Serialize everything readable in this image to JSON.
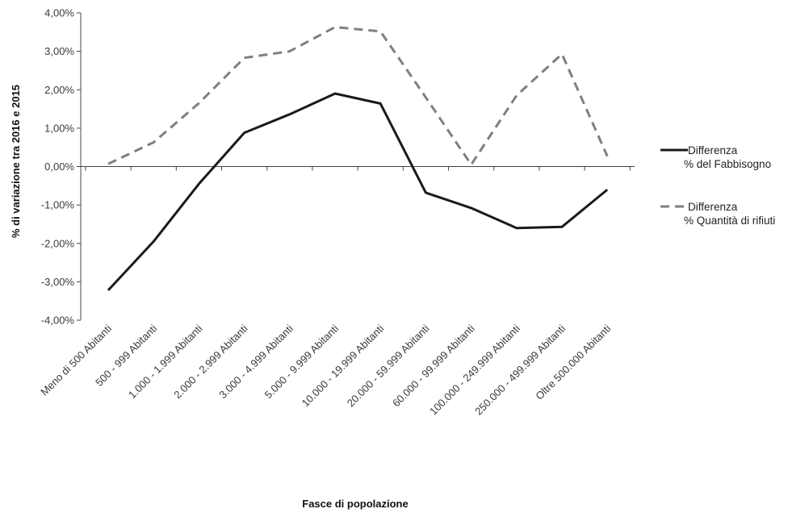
{
  "chart_data": {
    "type": "line",
    "title": "",
    "xlabel": "Fasce di popolazione",
    "ylabel": "% di variazione tra 2016 e 2015",
    "ylim": [
      -4,
      4
    ],
    "yticks": [
      4,
      3,
      2,
      1,
      0,
      -1,
      -2,
      -3,
      -4
    ],
    "ytick_labels": [
      "4,00%",
      "3,00%",
      "2,00%",
      "1,00%",
      "0,00%",
      "-1,00%",
      "-2,00%",
      "-3,00%",
      "-4,00%"
    ],
    "grid": false,
    "legend_position": "right",
    "categories": [
      "Meno di 500 Abitanti",
      "500 - 999 Abitanti",
      "1.000 - 1.999 Abitanti",
      "2.000 - 2.999 Abitanti",
      "3.000 - 4.999 Abitanti",
      "5.000 - 9.999 Abitanti",
      "10.000 - 19.999 Abitanti",
      "20.000 - 59.999 Abitanti",
      "60.000 - 99.999 Abitanti",
      "100.000 - 249.999 Abitanti",
      "250.000 - 499.999 Abitanti",
      "Oltre 500.000 Abitanti"
    ],
    "series": [
      {
        "name_line1": "Differenza",
        "name_line2": "% del Fabbisogno",
        "color": "#1a1a1a",
        "style": "solid",
        "values": [
          -3.22,
          -1.95,
          -0.45,
          0.88,
          1.36,
          1.9,
          1.64,
          -0.68,
          -1.08,
          -1.6,
          -1.57,
          -0.6
        ]
      },
      {
        "name_line1": "Differenza",
        "name_line2": "% Quantità di rifiuti",
        "color": "#7f7f7f",
        "style": "dashed",
        "values": [
          0.07,
          0.63,
          1.65,
          2.83,
          3.0,
          3.63,
          3.52,
          1.8,
          0.05,
          1.85,
          2.93,
          0.27
        ]
      }
    ]
  }
}
